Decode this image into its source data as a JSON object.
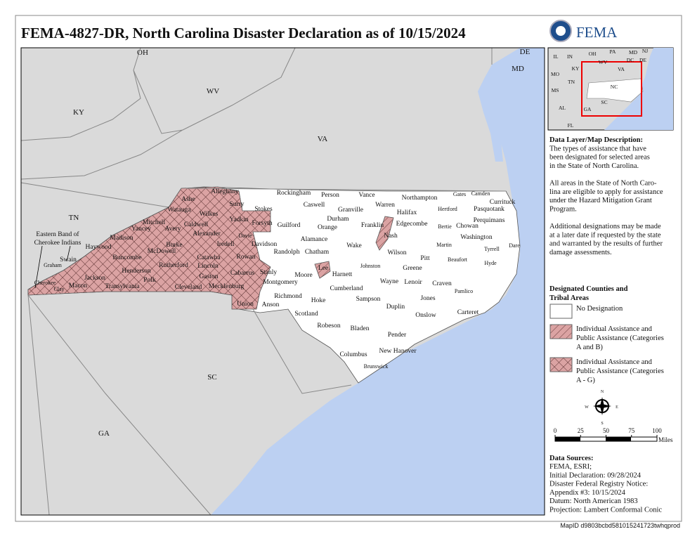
{
  "header": {
    "title": "FEMA-4827-DR, North Carolina Disaster Declaration as of 10/15/2024",
    "agency": "FEMA"
  },
  "map": {
    "state_labels": [
      "OH",
      "DE",
      "WV",
      "MD",
      "KY",
      "VA",
      "TN",
      "SC",
      "GA"
    ],
    "tribal_label": [
      "Eastern Band of",
      "Cherokee Indians"
    ],
    "county_labels": [
      "Alleghany",
      "Ashe",
      "Surry",
      "Stokes",
      "Rockingham",
      "Caswell",
      "Person",
      "Granville",
      "Vance",
      "Warren",
      "Northampton",
      "Gates",
      "Camden",
      "Currituck",
      "Hertford",
      "Pasquotank",
      "Halifax",
      "Wilkes",
      "Watauga",
      "Yadkin",
      "Forsyth",
      "Guilford",
      "Orange",
      "Durham",
      "Franklin",
      "Nash",
      "Edgecombe",
      "Bertie",
      "Chowan",
      "Perquimans",
      "Mitchell",
      "Caldwell",
      "Avery",
      "Yancey",
      "Alexander",
      "Davie",
      "Alamance",
      "Wake",
      "Washington",
      "Martin",
      "Tyrrell",
      "Dare",
      "Madison",
      "Burke",
      "Iredell",
      "Davidson",
      "Haywood",
      "McDowell",
      "Randolph",
      "Chatham",
      "Wilson",
      "Pitt",
      "Beaufort",
      "Hyde",
      "Swain",
      "Catawba",
      "Rowan",
      "Graham",
      "Buncombe",
      "Rutherford",
      "Lincoln",
      "Johnston",
      "Greene",
      "Henderson",
      "Cabarrus",
      "Stanly",
      "Moore",
      "Lee",
      "Harnett",
      "Gaston",
      "Jackson",
      "Polk",
      "Montgomery",
      "Wayne",
      "Lenoir",
      "Craven",
      "Cherokee",
      "Transylvania",
      "Cleveland",
      "Mecklenburg",
      "Clay",
      "Macon",
      "Cumberland",
      "Pamlico",
      "Richmond",
      "Jones",
      "Sampson",
      "Hoke",
      "Union",
      "Anson",
      "Duplin",
      "Scotland",
      "Carteret",
      "Onslow",
      "Robeson",
      "Bladen",
      "Pender",
      "New Hanover",
      "Columbus",
      "Brunswick"
    ]
  },
  "inset": {
    "labels": [
      "IL",
      "IN",
      "OH",
      "PA",
      "MD",
      "NJ",
      "WV",
      "DC",
      "DE",
      "MO",
      "KY",
      "VA",
      "TN",
      "NC",
      "MS",
      "AL",
      "SC",
      "GA",
      "FL"
    ]
  },
  "description": {
    "heading": "Data Layer/Map Description:",
    "paragraphs": [
      [
        "The types of assistance that have",
        "been designated for selected areas",
        "in the State of North Carolina."
      ],
      [
        "All areas in the State of North Caro-",
        "lina are eligible to apply for assistance",
        "under the Hazard Mitigation Grant",
        "Program."
      ],
      [
        "Additional designations may be made",
        "at a later date if requested by the state",
        "and warranted by the results of further",
        "damage assessments."
      ]
    ]
  },
  "legend": {
    "heading": [
      "Designated Counties and",
      "Tribal Areas"
    ],
    "items": [
      [
        "No Designation"
      ],
      [
        "Individual Assistance and",
        "Public Assistance (Categories",
        "A and B)"
      ],
      [
        "Individual Assistance and",
        "Public Assistance (Categories",
        "A - G)"
      ]
    ]
  },
  "compass": {
    "n": "N",
    "e": "E",
    "s": "S",
    "w": "W"
  },
  "scale": {
    "ticks": [
      0,
      25,
      50,
      75,
      100
    ],
    "unit": "Miles"
  },
  "sources": {
    "heading": "Data Sources:",
    "lines": [
      "FEMA, ESRI;",
      "Initial Declaration: 09/28/2024",
      "Disaster Federal Registry Notice:",
      "Appendix #3: 10/15/2024",
      "Datum: North American 1983",
      "Projection: Lambert Conformal Conic"
    ]
  },
  "map_id": "MapID d9803bcbd581015241723twhqprod"
}
